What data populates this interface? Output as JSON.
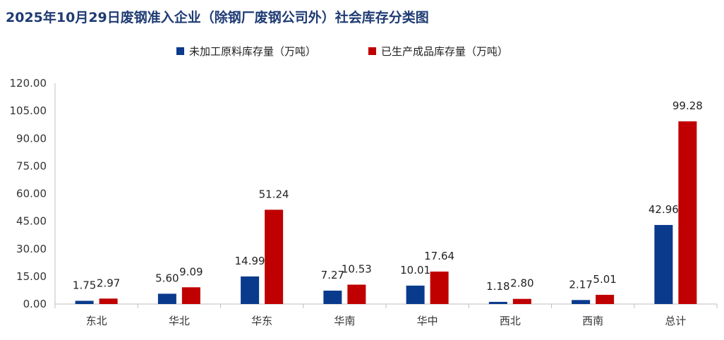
{
  "chart_data": {
    "type": "bar",
    "title": "2025年10月29日废钢准入企业（除钢厂废钢公司外）社会库存分类图",
    "categories": [
      "东北",
      "华北",
      "华东",
      "华南",
      "华中",
      "西北",
      "西南",
      "总计"
    ],
    "series": [
      {
        "name": "未加工原料库存量（万吨）",
        "color": "#0a3a8c",
        "values": [
          1.75,
          5.6,
          14.99,
          7.27,
          10.01,
          1.18,
          2.17,
          42.96
        ]
      },
      {
        "name": "已生产成品库存量（万吨）",
        "color": "#c00000",
        "values": [
          2.97,
          9.09,
          51.24,
          10.53,
          17.64,
          2.8,
          5.01,
          99.28
        ]
      }
    ],
    "ylim": [
      0,
      120
    ],
    "yticks": [
      "0.00",
      "15.00",
      "30.00",
      "45.00",
      "60.00",
      "75.00",
      "90.00",
      "105.00",
      "120.00"
    ],
    "legend": "top-center",
    "grid": false
  }
}
